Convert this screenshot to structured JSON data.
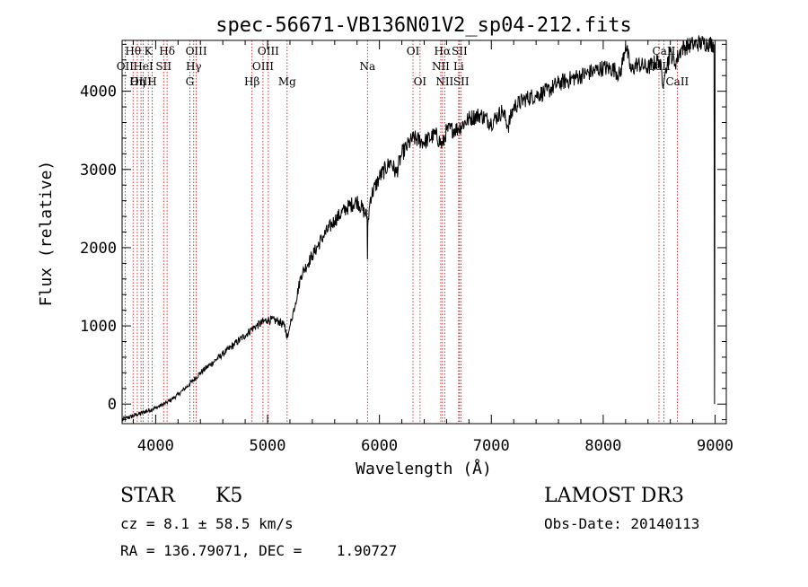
{
  "chart_data": {
    "type": "line",
    "title": "spec-56671-VB136N01V2_sp04-212.fits",
    "xlabel": "Wavelength (Å)",
    "ylabel": "Flux (relative)",
    "xlim": [
      3700,
      9100
    ],
    "ylim": [
      -250,
      4650
    ],
    "x_ticks": [
      4000,
      5000,
      6000,
      7000,
      8000,
      9000
    ],
    "y_ticks": [
      0,
      1000,
      2000,
      3000,
      4000
    ],
    "series": [
      {
        "name": "flux",
        "x": [
          3700,
          3800,
          3900,
          4000,
          4100,
          4200,
          4300,
          4400,
          4500,
          4600,
          4700,
          4800,
          4860,
          4900,
          5000,
          5100,
          5150,
          5180,
          5200,
          5250,
          5300,
          5400,
          5500,
          5600,
          5700,
          5800,
          5890,
          5893,
          5896,
          5920,
          6000,
          6100,
          6150,
          6200,
          6250,
          6300,
          6400,
          6500,
          6563,
          6600,
          6700,
          6800,
          6900,
          7000,
          7100,
          7150,
          7200,
          7300,
          7400,
          7500,
          7600,
          7700,
          7800,
          7900,
          8000,
          8100,
          8150,
          8200,
          8250,
          8300,
          8400,
          8500,
          8540,
          8560,
          8600,
          8640,
          8700,
          8800,
          8900,
          8990,
          8995,
          9000
        ],
        "y": [
          -200,
          -150,
          -100,
          -50,
          20,
          120,
          250,
          400,
          520,
          640,
          760,
          880,
          960,
          1000,
          1080,
          1060,
          1000,
          850,
          1000,
          1300,
          1650,
          1900,
          2150,
          2350,
          2500,
          2600,
          2400,
          1850,
          2300,
          2650,
          2900,
          3100,
          2950,
          3200,
          3300,
          3400,
          3350,
          3450,
          3300,
          3500,
          3520,
          3650,
          3700,
          3600,
          3750,
          3550,
          3800,
          3900,
          3950,
          4000,
          4100,
          4150,
          4200,
          4250,
          4300,
          4280,
          4200,
          4600,
          4250,
          4350,
          4300,
          4400,
          4100,
          4300,
          4500,
          4350,
          4550,
          4600,
          4620,
          4600,
          0,
          4580
        ]
      }
    ],
    "lines": [
      {
        "label": "Hθ",
        "wavelength": 3798,
        "row": 0
      },
      {
        "label": "OII",
        "wavelength": 3727,
        "row": 1
      },
      {
        "label": "OIII",
        "wavelength": 3869,
        "row": 2
      },
      {
        "label": "Hη",
        "wavelength": 3836,
        "row": 2
      },
      {
        "label": "HeI",
        "wavelength": 3889,
        "row": 1
      },
      {
        "label": "K",
        "wavelength": 3934,
        "row": 0
      },
      {
        "label": "SII",
        "wavelength": 4071,
        "row": 1
      },
      {
        "label": "H",
        "wavelength": 3969,
        "row": 2
      },
      {
        "label": "Hδ",
        "wavelength": 4102,
        "row": 0
      },
      {
        "label": "OIII",
        "wavelength": 4363,
        "row": 0
      },
      {
        "label": "Hγ",
        "wavelength": 4340,
        "row": 1
      },
      {
        "label": "G",
        "wavelength": 4305,
        "row": 2
      },
      {
        "label": "Hβ",
        "wavelength": 4861,
        "row": 2
      },
      {
        "label": "OIII",
        "wavelength": 4959,
        "row": 1
      },
      {
        "label": "OIII",
        "wavelength": 5007,
        "row": 0
      },
      {
        "label": "Mg",
        "wavelength": 5175,
        "row": 2
      },
      {
        "label": "Na",
        "wavelength": 5893,
        "row": 1
      },
      {
        "label": "OI",
        "wavelength": 6300,
        "row": 0
      },
      {
        "label": "OI",
        "wavelength": 6363,
        "row": 2
      },
      {
        "label": "Hα",
        "wavelength": 6563,
        "row": 0
      },
      {
        "label": "NII",
        "wavelength": 6548,
        "row": 1
      },
      {
        "label": "NII",
        "wavelength": 6583,
        "row": 2
      },
      {
        "label": "SII",
        "wavelength": 6716,
        "row": 0
      },
      {
        "label": "Li",
        "wavelength": 6708,
        "row": 1
      },
      {
        "label": "SII",
        "wavelength": 6731,
        "row": 2
      },
      {
        "label": "CaII",
        "wavelength": 8498,
        "row": 1
      },
      {
        "label": "CaII",
        "wavelength": 8542,
        "row": 0
      },
      {
        "label": "CaII",
        "wavelength": 8662,
        "row": 2
      }
    ],
    "line_color": "#c00000"
  },
  "info": {
    "class_label": "STAR",
    "subclass": "K5",
    "survey": "LAMOST DR3",
    "cz": "cz = 8.1 ± 58.5 km/s",
    "obs_date": "Obs-Date: 20140113",
    "radec": "RA = 136.79071, DEC =    1.90727"
  }
}
